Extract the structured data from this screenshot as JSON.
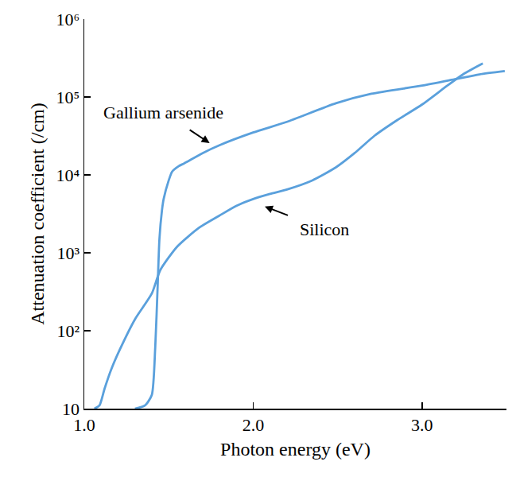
{
  "chart_data": {
    "type": "line",
    "x_label": "Photon energy (eV)",
    "y_label": "Attenuation coefficient (/cm)",
    "log": "y",
    "grid": false,
    "xlim": [
      1.0,
      3.5
    ],
    "xticks": [
      {
        "value": 1,
        "label": "1.0"
      },
      {
        "value": 2,
        "label": "2.0"
      },
      {
        "value": 3,
        "label": "3.0"
      }
    ],
    "ylim": [
      10,
      1000000
    ],
    "yticks": [
      10,
      {
        "value": 100,
        "label": "10²"
      },
      {
        "value": 1000,
        "label": "10³"
      },
      {
        "value": 10000,
        "label": "10⁴"
      },
      {
        "value": 100000,
        "label": "10⁵"
      },
      {
        "value": 1000000,
        "label": "10⁶"
      }
    ],
    "series": [
      {
        "name": "Gallium arsenide",
        "color": "#5aa0dc",
        "x": [
          1.3,
          1.36,
          1.4,
          1.42,
          1.435,
          1.445,
          1.46,
          1.47,
          1.5,
          1.52,
          1.56,
          1.59,
          1.7,
          1.8,
          2.0,
          2.2,
          2.49,
          2.7,
          3.0,
          3.2,
          3.34,
          3.49
        ],
        "values": [
          10,
          11,
          15,
          60,
          400,
          1500,
          3500,
          4900,
          8500,
          11000,
          13000,
          14000,
          19000,
          24000,
          35000,
          48000,
          83000,
          110000,
          140000,
          170000,
          195000,
          215000
        ]
      },
      {
        "name": "Silicon",
        "color": "#5aa0dc",
        "x": [
          1.06,
          1.09,
          1.12,
          1.16,
          1.21,
          1.3,
          1.4,
          1.45,
          1.55,
          1.68,
          1.8,
          1.9,
          2.0,
          2.1,
          2.2,
          2.35,
          2.49,
          2.6,
          2.72,
          2.85,
          3.0,
          3.15,
          3.25,
          3.36
        ],
        "values": [
          10,
          11,
          18,
          32,
          57,
          140,
          300,
          600,
          1200,
          2100,
          3000,
          4000,
          4900,
          5700,
          6500,
          8500,
          12500,
          19000,
          32000,
          50000,
          80000,
          140000,
          200000,
          270000
        ]
      }
    ],
    "annotations": [
      {
        "text": "Gallium arsenide",
        "x": 1.75,
        "y": 25000,
        "text_x": 1.47,
        "text_y": 63000
      },
      {
        "text": "Silicon",
        "x": 2.06,
        "y": 4000,
        "text_x": 2.42,
        "text_y": 2000
      }
    ]
  }
}
